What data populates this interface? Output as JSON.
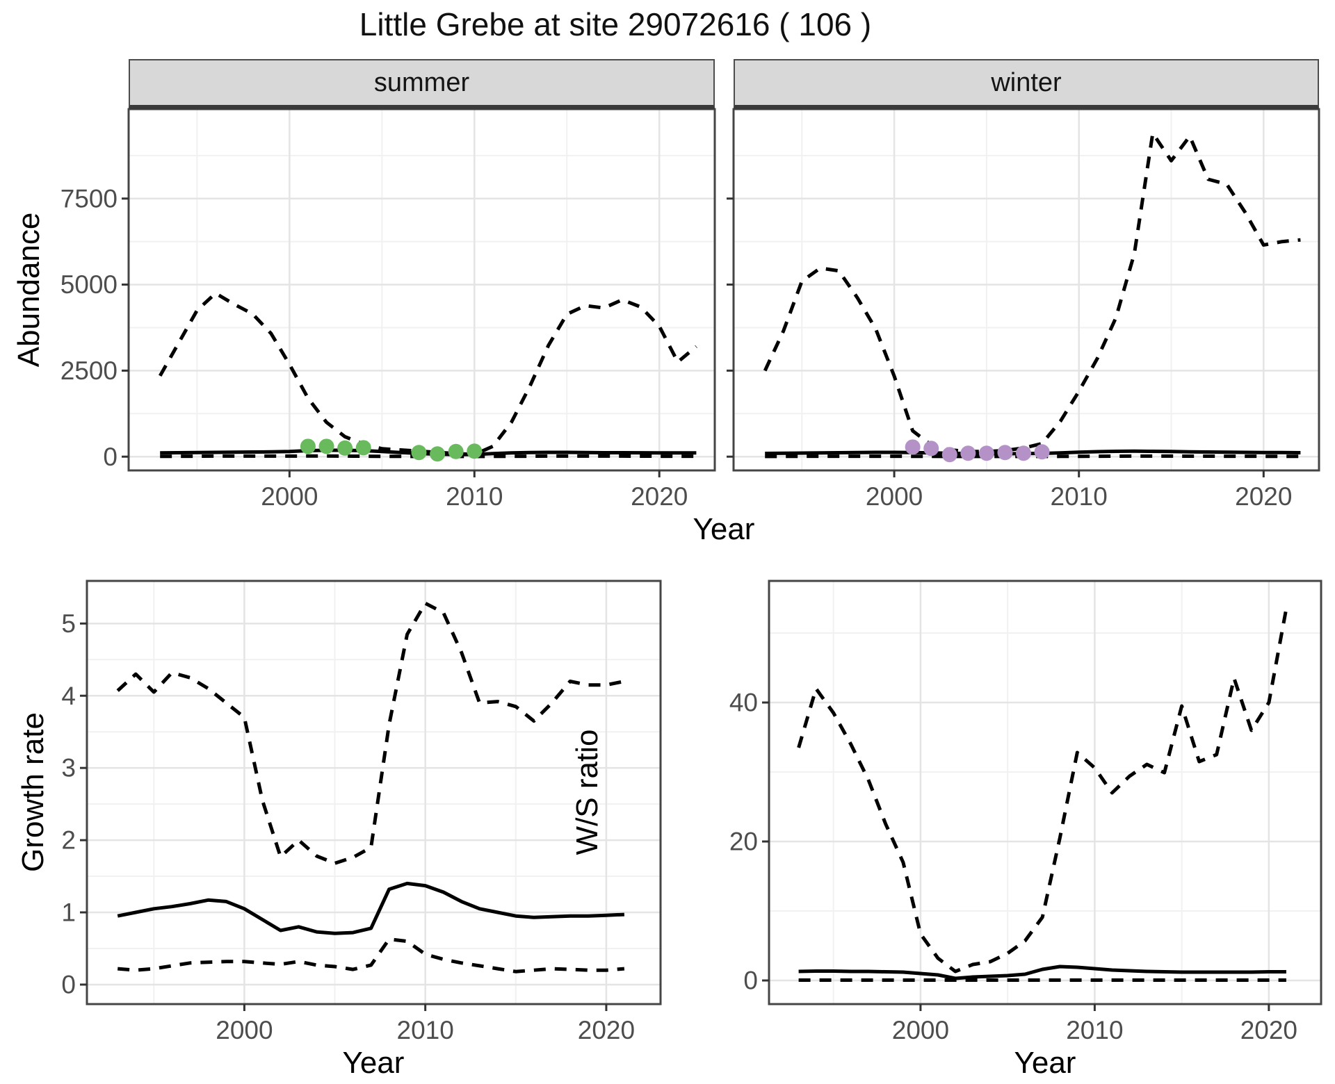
{
  "title": "Little Grebe at site 29072616 ( 106 )",
  "colors": {
    "summer_point": "#68ba5c",
    "winter_point": "#b492c8",
    "line": "#000000",
    "strip_bg": "#d8d8d8",
    "panel_border": "#454545",
    "grid_major": "#e4e4e4",
    "grid_minor": "#f1f1f1",
    "tick_mark": "#333333",
    "tick_label": "#4d4d4d",
    "background": "#ffffff"
  },
  "chart_data": [
    {
      "id": "abundance-summer",
      "type": "line",
      "facet": "summer",
      "xlabel": "Year",
      "ylabel": "Abundance",
      "xlim": [
        1991.3,
        2023.0
      ],
      "ylim": [
        -400,
        10100
      ],
      "xticks": [
        2000,
        2010,
        2020
      ],
      "xminor": [
        1995,
        2005,
        2015
      ],
      "yticks": [
        0,
        2500,
        5000,
        7500
      ],
      "yminor": [
        1250,
        3750,
        6250,
        8750
      ],
      "x": [
        1993,
        1994,
        1995,
        1996,
        1997,
        1998,
        1999,
        2000,
        2001,
        2002,
        2003,
        2004,
        2005,
        2006,
        2007,
        2008,
        2009,
        2010,
        2011,
        2012,
        2013,
        2014,
        2015,
        2016,
        2017,
        2018,
        2019,
        2020,
        2021,
        2022
      ],
      "series": [
        {
          "name": "upper-95ci",
          "linetype": "dashed",
          "values": [
            2350,
            3300,
            4250,
            4750,
            4430,
            4150,
            3580,
            2680,
            1700,
            1000,
            580,
            370,
            230,
            195,
            160,
            125,
            90,
            60,
            300,
            1000,
            2050,
            3230,
            4140,
            4390,
            4320,
            4560,
            4350,
            3790,
            2750,
            3200
          ]
        },
        {
          "name": "median",
          "linetype": "solid",
          "values": [
            110,
            115,
            120,
            125,
            130,
            135,
            140,
            150,
            175,
            185,
            185,
            175,
            150,
            120,
            95,
            70,
            60,
            65,
            90,
            110,
            120,
            125,
            125,
            120,
            115,
            115,
            112,
            110,
            108,
            110
          ]
        },
        {
          "name": "lower-95ci",
          "linetype": "dashed",
          "values": [
            10,
            10,
            12,
            15,
            15,
            15,
            15,
            15,
            18,
            18,
            15,
            12,
            10,
            8,
            5,
            5,
            5,
            5,
            8,
            10,
            12,
            15,
            15,
            15,
            15,
            15,
            14,
            12,
            10,
            12
          ]
        }
      ],
      "observed_points": {
        "color_key": "summer_point",
        "x": [
          2001,
          2002,
          2003,
          2004,
          2007,
          2008,
          2009,
          2010
        ],
        "y": [
          300,
          300,
          250,
          260,
          120,
          80,
          150,
          160
        ]
      }
    },
    {
      "id": "abundance-winter",
      "type": "line",
      "facet": "winter",
      "xlabel": "Year",
      "ylabel": "Abundance",
      "xlim": [
        1991.3,
        2023.0
      ],
      "ylim": [
        -400,
        10100
      ],
      "xticks": [
        2000,
        2010,
        2020
      ],
      "xminor": [
        1995,
        2005,
        2015
      ],
      "yticks": [
        0,
        2500,
        5000,
        7500
      ],
      "yminor": [
        1250,
        3750,
        6250,
        8750
      ],
      "x": [
        1993,
        1994,
        1995,
        1996,
        1997,
        1998,
        1999,
        2000,
        2001,
        2002,
        2003,
        2004,
        2005,
        2006,
        2007,
        2008,
        2009,
        2010,
        2011,
        2012,
        2013,
        2014,
        2015,
        2016,
        2017,
        2018,
        2019,
        2020,
        2021,
        2022
      ],
      "series": [
        {
          "name": "upper-95ci",
          "linetype": "dashed",
          "values": [
            2500,
            3650,
            5100,
            5480,
            5400,
            4620,
            3710,
            2340,
            750,
            340,
            200,
            150,
            150,
            180,
            250,
            380,
            1030,
            1900,
            2860,
            4030,
            5900,
            9400,
            8600,
            9310,
            8060,
            7920,
            7100,
            6150,
            6250,
            6300
          ]
        },
        {
          "name": "median",
          "linetype": "solid",
          "values": [
            95,
            100,
            105,
            110,
            115,
            120,
            125,
            125,
            120,
            110,
            100,
            90,
            85,
            85,
            90,
            95,
            110,
            130,
            145,
            155,
            160,
            155,
            150,
            140,
            135,
            130,
            125,
            120,
            118,
            115
          ]
        },
        {
          "name": "lower-95ci",
          "linetype": "dashed",
          "values": [
            5,
            8,
            10,
            12,
            12,
            12,
            12,
            12,
            10,
            8,
            6,
            5,
            5,
            5,
            5,
            6,
            8,
            10,
            12,
            14,
            15,
            15,
            15,
            14,
            13,
            12,
            11,
            10,
            10,
            10
          ]
        }
      ],
      "observed_points": {
        "color_key": "winter_point",
        "x": [
          2001,
          2002,
          2003,
          2004,
          2005,
          2006,
          2007,
          2008
        ],
        "y": [
          280,
          240,
          60,
          100,
          100,
          120,
          100,
          140
        ]
      }
    },
    {
      "id": "growth-rate",
      "type": "line",
      "facet": "",
      "xlabel": "Year",
      "ylabel": "Growth rate",
      "xlim": [
        1991.3,
        2023.0
      ],
      "ylim": [
        -0.27,
        5.59
      ],
      "xticks": [
        2000,
        2010,
        2020
      ],
      "xminor": [
        1995,
        2005,
        2015
      ],
      "yticks": [
        0,
        1,
        2,
        3,
        4,
        5
      ],
      "yminor": [
        0.5,
        1.5,
        2.5,
        3.5,
        4.5
      ],
      "x": [
        1993,
        1994,
        1995,
        1996,
        1997,
        1998,
        1999,
        2000,
        2001,
        2002,
        2003,
        2004,
        2005,
        2006,
        2007,
        2008,
        2009,
        2010,
        2011,
        2012,
        2013,
        2014,
        2015,
        2016,
        2017,
        2018,
        2019,
        2020,
        2021
      ],
      "series": [
        {
          "name": "upper-95ci",
          "linetype": "dashed",
          "values": [
            4.07,
            4.3,
            4.05,
            4.32,
            4.25,
            4.1,
            3.9,
            3.7,
            2.55,
            1.77,
            2.0,
            1.78,
            1.68,
            1.76,
            1.9,
            3.6,
            4.85,
            5.28,
            5.15,
            4.6,
            3.9,
            3.92,
            3.85,
            3.65,
            3.9,
            4.2,
            4.15,
            4.15,
            4.2
          ]
        },
        {
          "name": "median",
          "linetype": "solid",
          "values": [
            0.95,
            1.0,
            1.05,
            1.08,
            1.12,
            1.17,
            1.15,
            1.05,
            0.9,
            0.75,
            0.8,
            0.73,
            0.71,
            0.72,
            0.78,
            1.32,
            1.4,
            1.37,
            1.28,
            1.15,
            1.05,
            1.0,
            0.95,
            0.93,
            0.94,
            0.95,
            0.95,
            0.96,
            0.97
          ]
        },
        {
          "name": "lower-95ci",
          "linetype": "dashed",
          "values": [
            0.22,
            0.2,
            0.22,
            0.26,
            0.3,
            0.31,
            0.32,
            0.32,
            0.3,
            0.28,
            0.32,
            0.27,
            0.25,
            0.21,
            0.27,
            0.63,
            0.6,
            0.42,
            0.35,
            0.3,
            0.26,
            0.22,
            0.18,
            0.2,
            0.22,
            0.21,
            0.2,
            0.2,
            0.22
          ]
        }
      ],
      "observed_points": null
    },
    {
      "id": "ws-ratio",
      "type": "line",
      "facet": "",
      "xlabel": "Year",
      "ylabel": "W/S ratio",
      "xlim": [
        1991.3,
        2023.0
      ],
      "ylim": [
        -3.4,
        57.5
      ],
      "xticks": [
        2000,
        2010,
        2020
      ],
      "xminor": [
        1995,
        2005,
        2015
      ],
      "yticks": [
        0,
        20,
        40
      ],
      "yminor": [
        10,
        30,
        50
      ],
      "x": [
        1993,
        1994,
        1995,
        1996,
        1997,
        1998,
        1999,
        2000,
        2001,
        2002,
        2003,
        2004,
        2005,
        2006,
        2007,
        2008,
        2009,
        2010,
        2011,
        2012,
        2013,
        2014,
        2015,
        2016,
        2017,
        2018,
        2019,
        2020,
        2021
      ],
      "series": [
        {
          "name": "upper-95ci",
          "linetype": "dashed",
          "values": [
            33.5,
            42,
            38.5,
            34,
            28.9,
            22.5,
            17,
            6.7,
            3.2,
            1.3,
            2.3,
            2.7,
            3.9,
            5.7,
            9.1,
            20.5,
            32.8,
            30.6,
            27,
            29.4,
            31.1,
            29.9,
            39.5,
            31.5,
            32.5,
            43.5,
            36,
            40,
            53.5
          ]
        },
        {
          "name": "median",
          "linetype": "solid",
          "values": [
            1.3,
            1.35,
            1.35,
            1.3,
            1.3,
            1.25,
            1.2,
            1.0,
            0.8,
            0.3,
            0.5,
            0.6,
            0.7,
            0.9,
            1.6,
            2.0,
            1.9,
            1.7,
            1.5,
            1.4,
            1.3,
            1.25,
            1.2,
            1.2,
            1.2,
            1.2,
            1.2,
            1.25,
            1.25
          ]
        },
        {
          "name": "lower-95ci",
          "linetype": "dashed",
          "values": [
            0.05,
            0.05,
            0.05,
            0.05,
            0.05,
            0.05,
            0.05,
            0.05,
            0.05,
            0.05,
            0.05,
            0.05,
            0.05,
            0.05,
            0.05,
            0.05,
            0.05,
            0.05,
            0.05,
            0.05,
            0.05,
            0.05,
            0.05,
            0.05,
            0.05,
            0.05,
            0.05,
            0.05,
            0.05
          ]
        }
      ],
      "observed_points": null
    }
  ]
}
